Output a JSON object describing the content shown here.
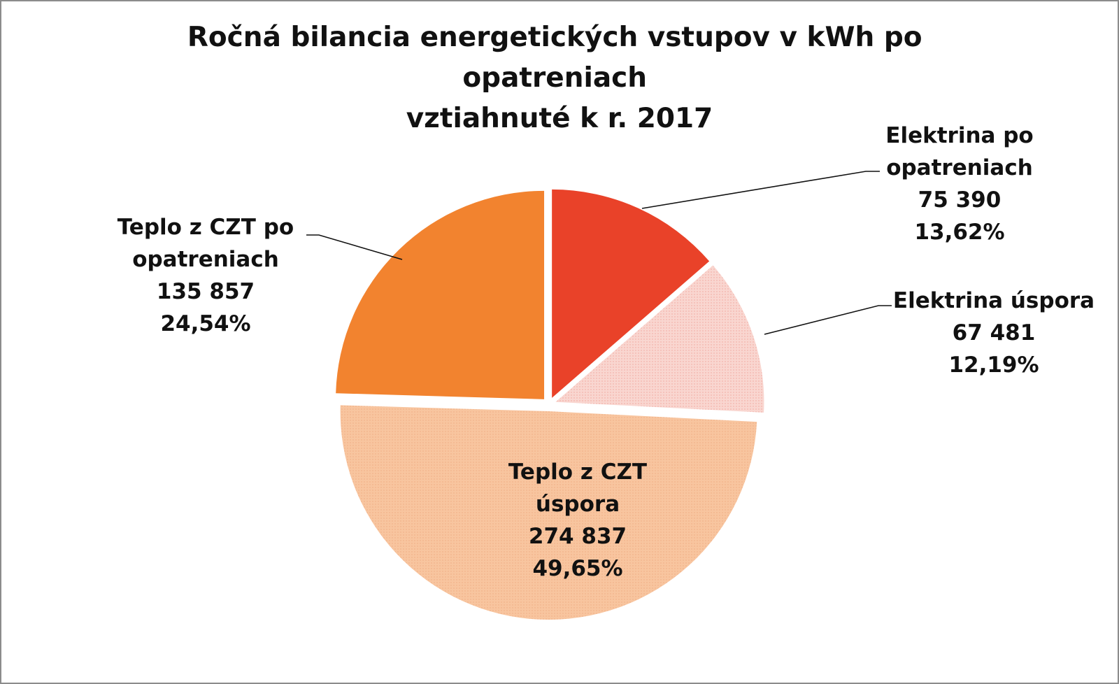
{
  "chart_data": {
    "type": "pie",
    "title_lines": [
      "Ročná bilancia energetických vstupov v kWh po",
      "opatreniach",
      "vztiahnuté k r. 2017"
    ],
    "slices": [
      {
        "key": "el_po",
        "value": 75390,
        "value_label": "75 390",
        "percent": 13.62,
        "percent_label": "13,62%",
        "label_lines": [
          "Elektrina po",
          "opatreniach"
        ],
        "color": "#e94229",
        "pattern": false
      },
      {
        "key": "el_uspora",
        "value": 67481,
        "value_label": "67 481",
        "percent": 12.19,
        "percent_label": "12,19%",
        "label_lines": [
          "Elektrina úspora"
        ],
        "color": "#f9d6d0",
        "pattern": true
      },
      {
        "key": "czt_uspora",
        "value": 274837,
        "value_label": "274 837",
        "percent": 49.65,
        "percent_label": "49,65%",
        "label_lines": [
          "Teplo z CZT",
          "úspora"
        ],
        "color": "#f8c49f",
        "pattern": true
      },
      {
        "key": "czt_po",
        "value": 135857,
        "value_label": "135 857",
        "percent": 24.54,
        "percent_label": "24,54%",
        "label_lines": [
          "Teplo z CZT po",
          "opatreniach"
        ],
        "color": "#f2832f",
        "pattern": false
      }
    ]
  }
}
